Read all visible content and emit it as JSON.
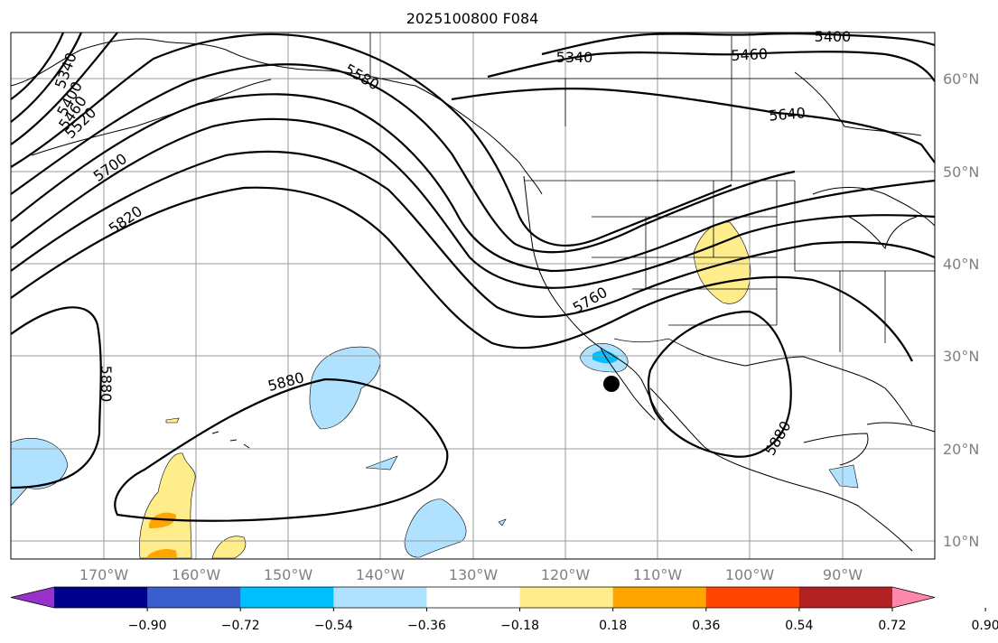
{
  "title": "2025100800 F084",
  "lat_labels": [
    "60°N",
    "50°N",
    "40°N",
    "30°N",
    "20°N",
    "10°N"
  ],
  "lon_labels": [
    "170°W",
    "160°W",
    "150°W",
    "140°W",
    "130°W",
    "120°W",
    "110°W",
    "100°W",
    "90°W"
  ],
  "contour_labels": [
    "5340",
    "5400",
    "5460",
    "5520",
    "5700",
    "5820",
    "5580",
    "5340",
    "5460",
    "5400",
    "5640",
    "5760",
    "5880",
    "5880",
    "5880"
  ],
  "colorbar": {
    "ticks": [
      "−0.90",
      "−0.72",
      "−0.54",
      "−0.36",
      "−0.18",
      "0.18",
      "0.36",
      "0.54",
      "0.72",
      "0.90"
    ],
    "colors": [
      "#9932cc",
      "#00008b",
      "#3a5fcd",
      "#00bfff",
      "#b0e2ff",
      "#ffffff",
      "#ffec8b",
      "#ffa500",
      "#ff4500",
      "#b22222",
      "#ff88aa"
    ]
  },
  "marker": "black-dot"
}
